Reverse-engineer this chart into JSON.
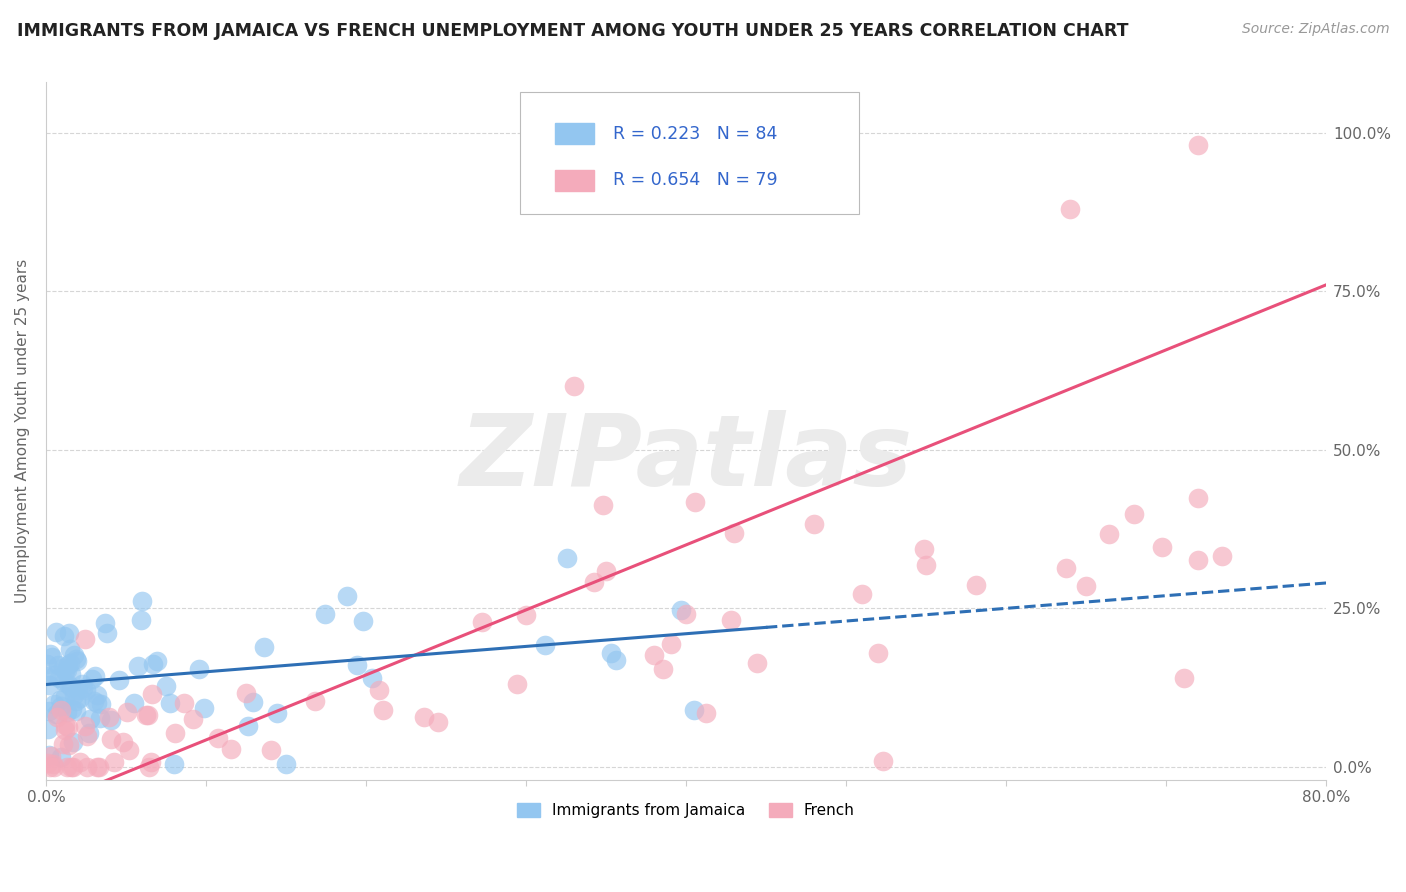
{
  "title": "IMMIGRANTS FROM JAMAICA VS FRENCH UNEMPLOYMENT AMONG YOUTH UNDER 25 YEARS CORRELATION CHART",
  "source_text": "Source: ZipAtlas.com",
  "ylabel": "Unemployment Among Youth under 25 years",
  "xlim": [
    0.0,
    0.8
  ],
  "ylim": [
    -0.02,
    1.08
  ],
  "xtick_vals": [
    0.0,
    0.1,
    0.2,
    0.3,
    0.4,
    0.5,
    0.6,
    0.7,
    0.8
  ],
  "ytick_vals": [
    0.0,
    0.25,
    0.5,
    0.75,
    1.0
  ],
  "ytick_labels": [
    "0.0%",
    "25.0%",
    "50.0%",
    "75.0%",
    "100.0%"
  ],
  "blue_R": 0.223,
  "blue_N": 84,
  "pink_R": 0.654,
  "pink_N": 79,
  "legend_label_blue": "Immigrants from Jamaica",
  "legend_label_pink": "French",
  "blue_color": "#93C6F0",
  "pink_color": "#F4ABBB",
  "blue_line_color": "#2E6FB5",
  "pink_line_color": "#E8507A",
  "legend_text_color": "#3366CC",
  "watermark_color": "#EBEBEB",
  "background_color": "#ffffff",
  "grid_color": "#cccccc",
  "title_fontsize": 12.5,
  "source_fontsize": 10,
  "ylabel_fontsize": 11,
  "tick_label_color": "#666666"
}
